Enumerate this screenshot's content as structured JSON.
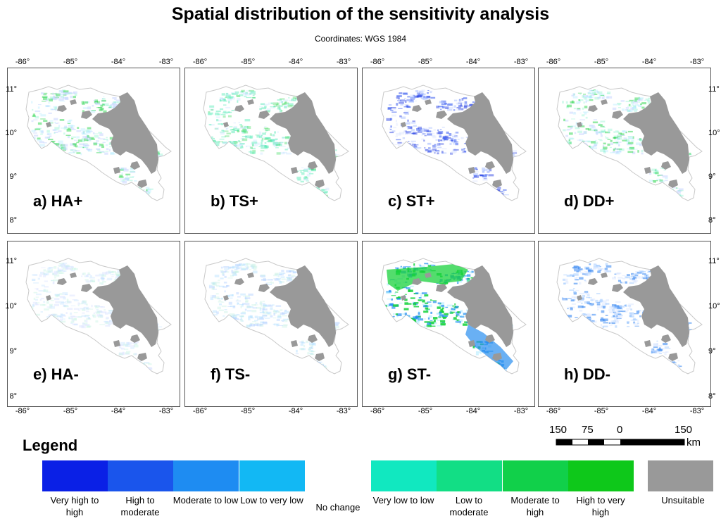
{
  "title": "Spatial distribution of the sensitivity analysis",
  "subtitle": "Coordinates: WGS 1984",
  "x_ticks": [
    "-86°",
    "-85°",
    "-84°",
    "-83°"
  ],
  "y_ticks": [
    "11°",
    "10°",
    "9°",
    "8°"
  ],
  "panels": [
    {
      "label": "a) HA+",
      "scheme": "mix_light"
    },
    {
      "label": "b) TS+",
      "scheme": "mix_green"
    },
    {
      "label": "c) ST+",
      "scheme": "blue"
    },
    {
      "label": "d) DD+",
      "scheme": "mix_light"
    },
    {
      "label": "e) HA-",
      "scheme": "pale"
    },
    {
      "label": "f) TS-",
      "scheme": "pale_blue"
    },
    {
      "label": "g) ST-",
      "scheme": "green_strong"
    },
    {
      "label": "h) DD-",
      "scheme": "blue_medium"
    }
  ],
  "legend": {
    "title": "Legend",
    "items": [
      {
        "label": "Very high to high",
        "color": "#0a20e6"
      },
      {
        "label": "High to moderate",
        "color": "#1a55ec"
      },
      {
        "label": "Moderate to low",
        "color": "#1e8cf2"
      },
      {
        "label": "Low to very low",
        "color": "#12b8f4"
      },
      {
        "label": "No change",
        "color": "#ffffff"
      },
      {
        "label": "Very low to low",
        "color": "#11e8c0"
      },
      {
        "label": "Low to moderate",
        "color": "#12de85"
      },
      {
        "label": "Moderate to high",
        "color": "#11d04a"
      },
      {
        "label": "High to very high",
        "color": "#0ec81a"
      },
      {
        "label": "Unsuitable",
        "color": "#999999"
      }
    ]
  },
  "scale": {
    "labels": [
      "150",
      "75",
      "0",
      "150"
    ],
    "unit": "km"
  }
}
